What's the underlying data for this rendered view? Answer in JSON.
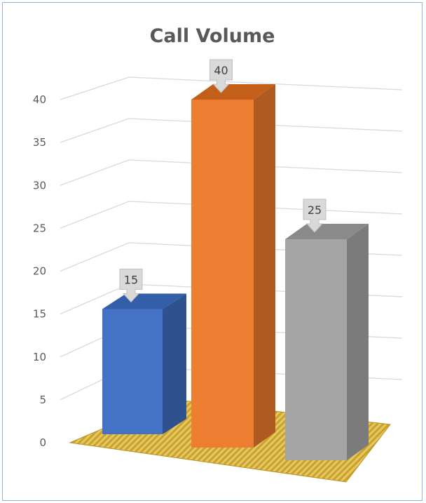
{
  "chart_data": {
    "type": "bar",
    "title": "Call Volume",
    "categories": [
      "",
      "",
      ""
    ],
    "values": [
      15,
      40,
      25
    ],
    "ylim": [
      0,
      40
    ],
    "yticks": [
      0,
      5,
      10,
      15,
      20,
      25,
      30,
      35,
      40
    ],
    "data_labels": [
      "15",
      "40",
      "25"
    ],
    "grid": true,
    "legend": "none",
    "style": "3d-column",
    "colors": {
      "bar_front": [
        "#4472c4",
        "#ed7d31",
        "#a5a5a5"
      ],
      "bar_side": [
        "#2f528f",
        "#ae5a21",
        "#7b7b7b"
      ],
      "bar_top": [
        "#335ea8",
        "#c45f1a",
        "#8a8a8a"
      ],
      "floor": "#c9a227",
      "gridline": "#d9d9d9",
      "label_box": "#d9d9d9"
    }
  }
}
